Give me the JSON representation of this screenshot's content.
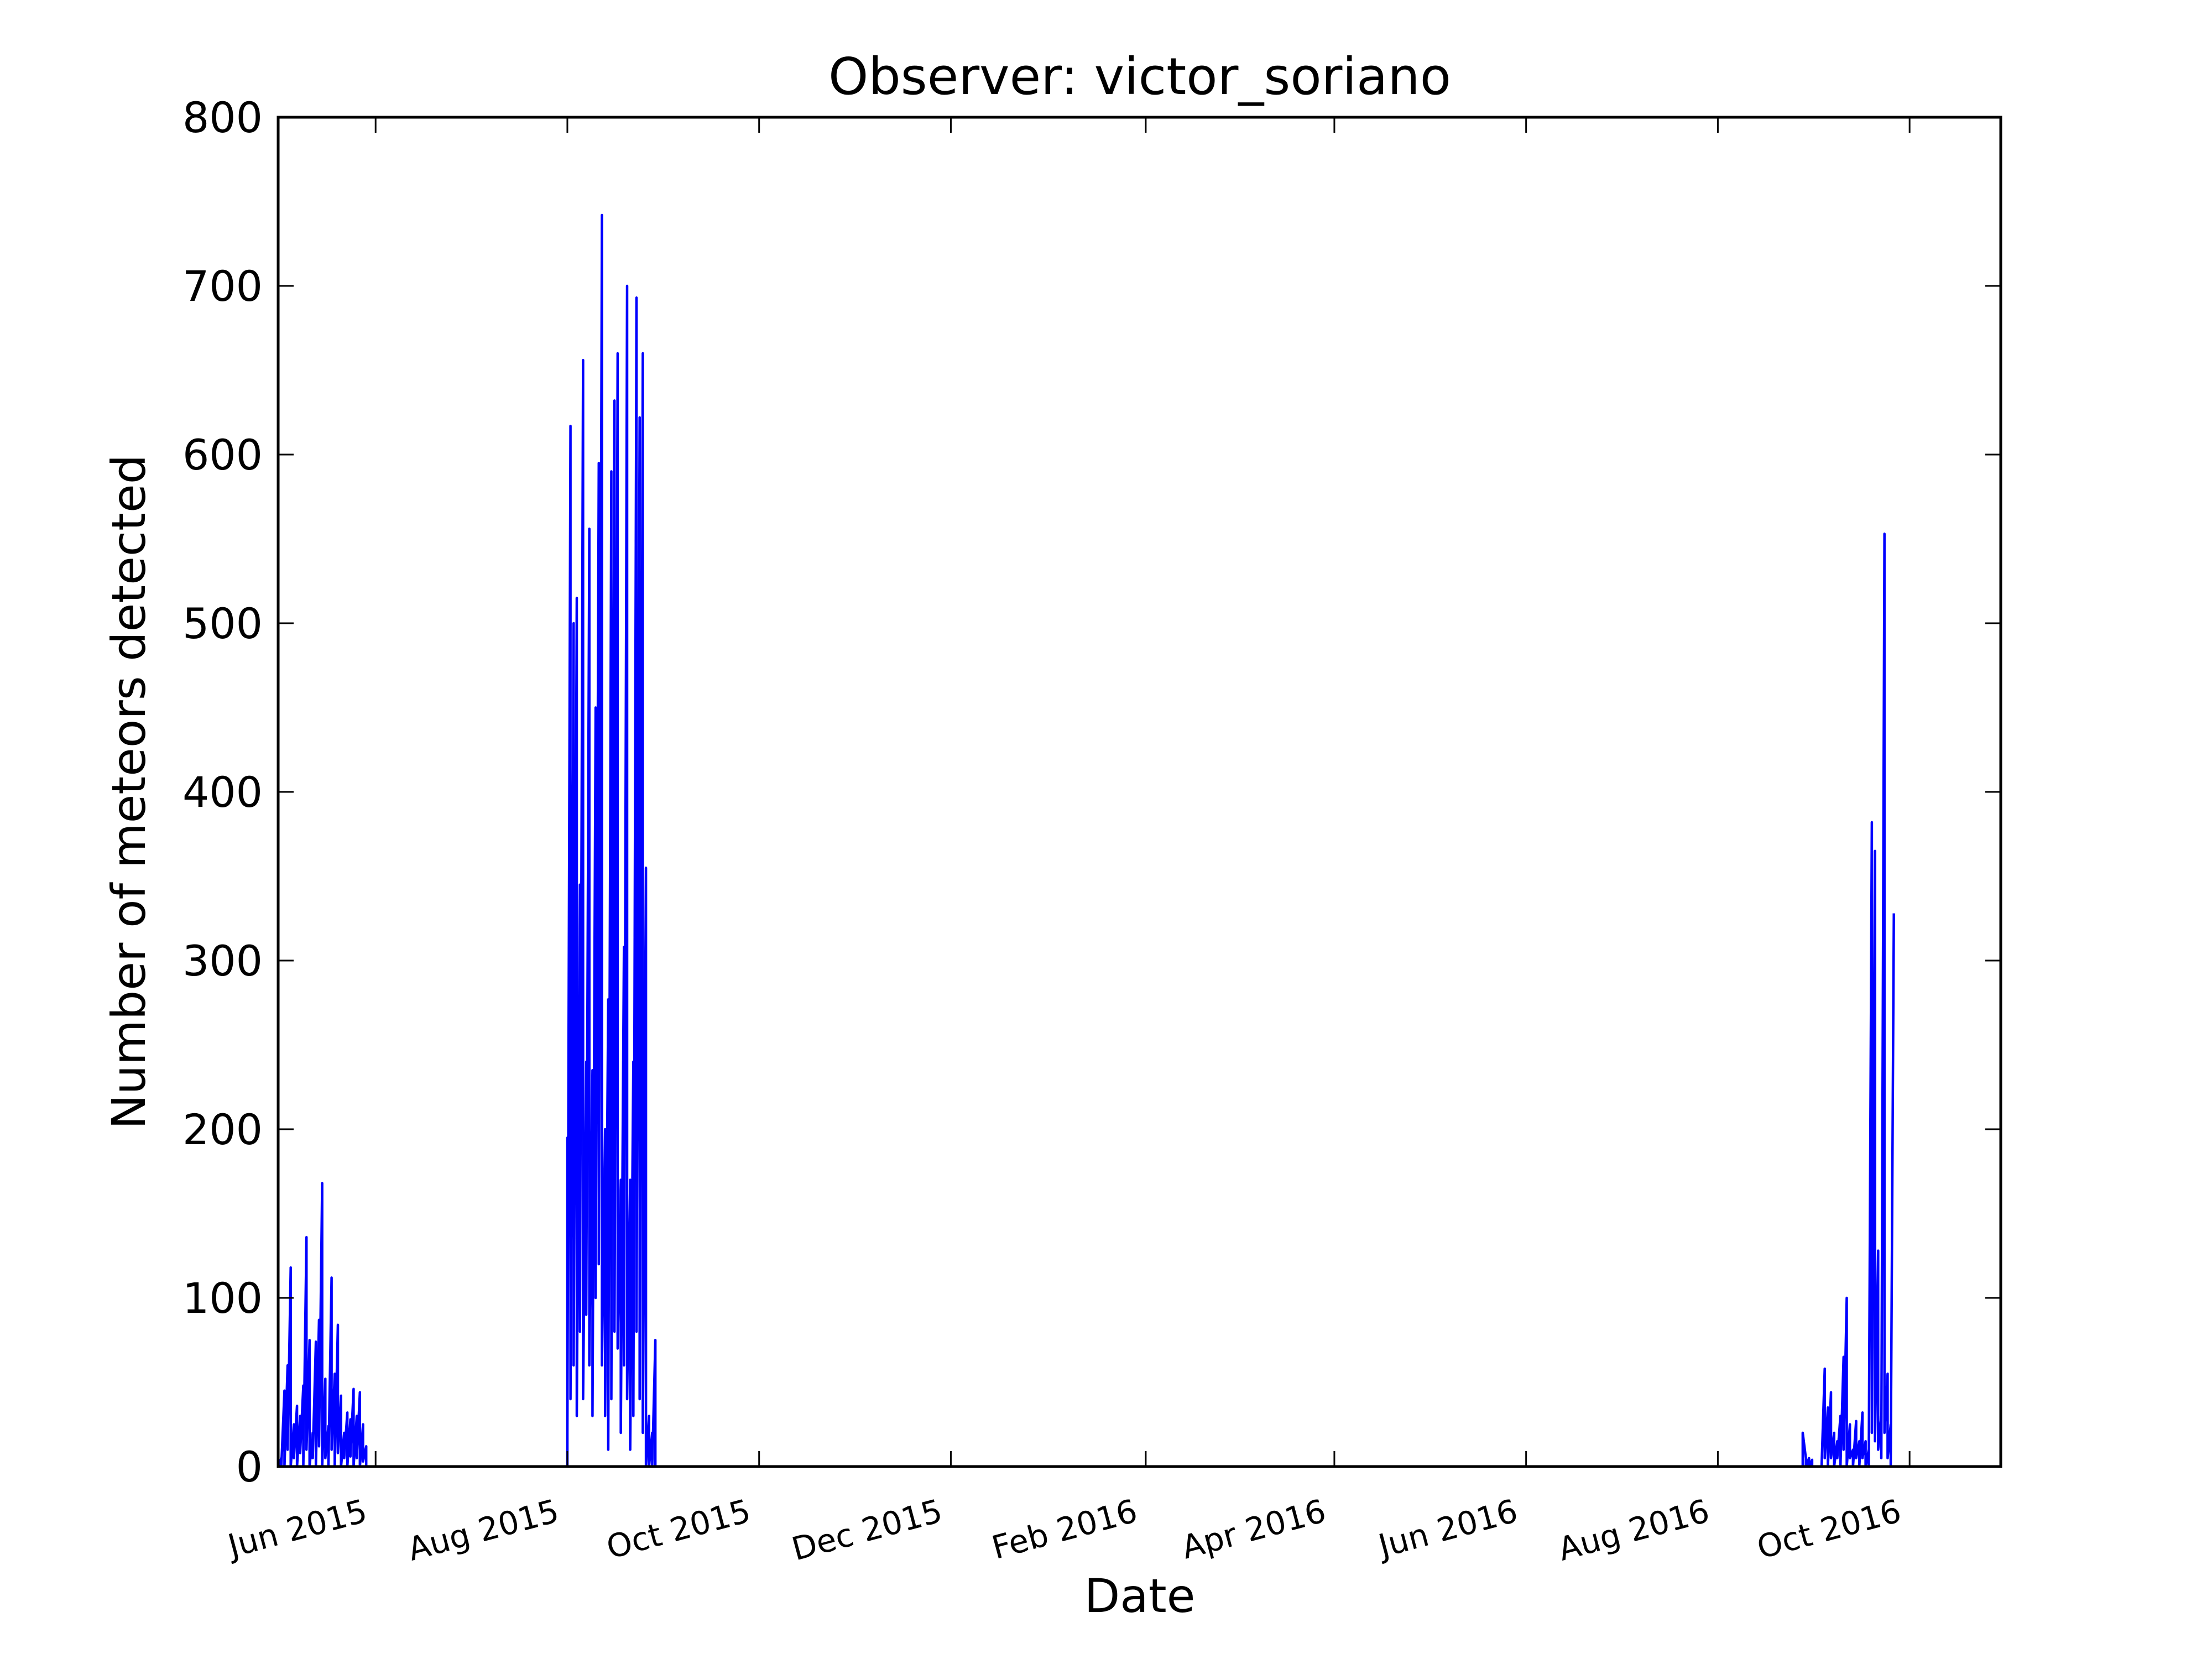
{
  "chart_data": {
    "type": "line",
    "title": "Observer: victor_soriano",
    "xlabel": "Date",
    "ylabel": "Number of meteors detected",
    "ylim": [
      0,
      800
    ],
    "xlim": [
      "2015-05-01",
      "2016-10-30"
    ],
    "yticks": [
      0,
      100,
      200,
      300,
      400,
      500,
      600,
      700,
      800
    ],
    "xticks": [
      {
        "date": "2015-06-01",
        "label": "Jun 2015"
      },
      {
        "date": "2015-08-01",
        "label": "Aug 2015"
      },
      {
        "date": "2015-10-01",
        "label": "Oct 2015"
      },
      {
        "date": "2015-12-01",
        "label": "Dec 2015"
      },
      {
        "date": "2016-02-01",
        "label": "Feb 2016"
      },
      {
        "date": "2016-04-01",
        "label": "Apr 2016"
      },
      {
        "date": "2016-06-01",
        "label": "Jun 2016"
      },
      {
        "date": "2016-08-01",
        "label": "Aug 2016"
      },
      {
        "date": "2016-10-01",
        "label": "Oct 2016"
      }
    ],
    "grid": false,
    "legend": "none",
    "series": [
      {
        "color": "#0000ff",
        "points": [
          [
            "2015-05-01",
            8
          ],
          [
            "2015-05-01",
            0
          ],
          [
            "2015-05-02",
            5
          ],
          [
            "2015-05-02",
            0
          ],
          [
            "2015-05-03",
            45
          ],
          [
            "2015-05-03",
            0
          ],
          [
            "2015-05-04",
            60
          ],
          [
            "2015-05-04",
            10
          ],
          [
            "2015-05-05",
            118
          ],
          [
            "2015-05-05",
            0
          ],
          [
            "2015-05-06",
            25
          ],
          [
            "2015-05-06",
            5
          ],
          [
            "2015-05-07",
            36
          ],
          [
            "2015-05-07",
            0
          ],
          [
            "2015-05-08",
            30
          ],
          [
            "2015-05-08",
            8
          ],
          [
            "2015-05-09",
            48
          ],
          [
            "2015-05-09",
            0
          ],
          [
            "2015-05-10",
            136
          ],
          [
            "2015-05-10",
            10
          ],
          [
            "2015-05-11",
            75
          ],
          [
            "2015-05-11",
            0
          ],
          [
            "2015-05-12",
            20
          ],
          [
            "2015-05-12",
            5
          ],
          [
            "2015-05-13",
            74
          ],
          [
            "2015-05-13",
            0
          ],
          [
            "2015-05-14",
            87
          ],
          [
            "2015-05-14",
            12
          ],
          [
            "2015-05-15",
            168
          ],
          [
            "2015-05-15",
            0
          ],
          [
            "2015-05-16",
            52
          ],
          [
            "2015-05-16",
            5
          ],
          [
            "2015-05-17",
            24
          ],
          [
            "2015-05-17",
            0
          ],
          [
            "2015-05-18",
            112
          ],
          [
            "2015-05-18",
            10
          ],
          [
            "2015-05-19",
            55
          ],
          [
            "2015-05-19",
            0
          ],
          [
            "2015-05-20",
            84
          ],
          [
            "2015-05-20",
            8
          ],
          [
            "2015-05-21",
            42
          ],
          [
            "2015-05-21",
            0
          ],
          [
            "2015-05-22",
            20
          ],
          [
            "2015-05-22",
            5
          ],
          [
            "2015-05-23",
            32
          ],
          [
            "2015-05-23",
            0
          ],
          [
            "2015-05-24",
            28
          ],
          [
            "2015-05-24",
            6
          ],
          [
            "2015-05-25",
            46
          ],
          [
            "2015-05-25",
            0
          ],
          [
            "2015-05-26",
            30
          ],
          [
            "2015-05-26",
            5
          ],
          [
            "2015-05-27",
            44
          ],
          [
            "2015-05-27",
            0
          ],
          [
            "2015-05-28",
            25
          ],
          [
            "2015-05-28",
            3
          ],
          [
            "2015-05-29",
            12
          ],
          [
            "2015-05-29",
            0
          ],
          [
            "2015-05-30",
            0
          ],
          [
            "2015-08-01",
            0
          ],
          [
            "2015-08-01",
            195
          ],
          [
            "2015-08-01",
            20
          ],
          [
            "2015-08-02",
            617
          ],
          [
            "2015-08-02",
            40
          ],
          [
            "2015-08-03",
            500
          ],
          [
            "2015-08-03",
            60
          ],
          [
            "2015-08-04",
            515
          ],
          [
            "2015-08-04",
            30
          ],
          [
            "2015-08-05",
            345
          ],
          [
            "2015-08-05",
            80
          ],
          [
            "2015-08-06",
            656
          ],
          [
            "2015-08-06",
            40
          ],
          [
            "2015-08-07",
            240
          ],
          [
            "2015-08-07",
            90
          ],
          [
            "2015-08-08",
            556
          ],
          [
            "2015-08-08",
            60
          ],
          [
            "2015-08-09",
            235
          ],
          [
            "2015-08-09",
            30
          ],
          [
            "2015-08-10",
            450
          ],
          [
            "2015-08-10",
            100
          ],
          [
            "2015-08-11",
            595
          ],
          [
            "2015-08-11",
            120
          ],
          [
            "2015-08-12",
            742
          ],
          [
            "2015-08-12",
            60
          ],
          [
            "2015-08-13",
            200
          ],
          [
            "2015-08-13",
            30
          ],
          [
            "2015-08-14",
            277
          ],
          [
            "2015-08-14",
            10
          ],
          [
            "2015-08-15",
            590
          ],
          [
            "2015-08-15",
            40
          ],
          [
            "2015-08-16",
            632
          ],
          [
            "2015-08-16",
            80
          ],
          [
            "2015-08-17",
            660
          ],
          [
            "2015-08-17",
            70
          ],
          [
            "2015-08-18",
            170
          ],
          [
            "2015-08-18",
            20
          ],
          [
            "2015-08-19",
            308
          ],
          [
            "2015-08-19",
            60
          ],
          [
            "2015-08-20",
            700
          ],
          [
            "2015-08-20",
            40
          ],
          [
            "2015-08-21",
            170
          ],
          [
            "2015-08-21",
            10
          ],
          [
            "2015-08-22",
            240
          ],
          [
            "2015-08-22",
            30
          ],
          [
            "2015-08-23",
            693
          ],
          [
            "2015-08-23",
            80
          ],
          [
            "2015-08-24",
            622
          ],
          [
            "2015-08-24",
            40
          ],
          [
            "2015-08-25",
            660
          ],
          [
            "2015-08-25",
            20
          ],
          [
            "2015-08-26",
            355
          ],
          [
            "2015-08-26",
            0
          ],
          [
            "2015-08-27",
            30
          ],
          [
            "2015-08-27",
            0
          ],
          [
            "2015-08-28",
            20
          ],
          [
            "2015-08-28",
            0
          ],
          [
            "2015-08-29",
            75
          ],
          [
            "2015-08-29",
            0
          ],
          [
            "2016-08-28",
            0
          ],
          [
            "2016-08-28",
            20
          ],
          [
            "2016-08-29",
            5
          ],
          [
            "2016-08-29",
            0
          ],
          [
            "2016-08-30",
            5
          ],
          [
            "2016-08-30",
            0
          ],
          [
            "2016-08-31",
            4
          ],
          [
            "2016-08-31",
            0
          ],
          [
            "2016-09-03",
            0
          ],
          [
            "2016-09-04",
            58
          ],
          [
            "2016-09-04",
            5
          ],
          [
            "2016-09-05",
            35
          ],
          [
            "2016-09-05",
            0
          ],
          [
            "2016-09-06",
            44
          ],
          [
            "2016-09-06",
            5
          ],
          [
            "2016-09-07",
            20
          ],
          [
            "2016-09-07",
            0
          ],
          [
            "2016-09-08",
            15
          ],
          [
            "2016-09-08",
            5
          ],
          [
            "2016-09-09",
            30
          ],
          [
            "2016-09-09",
            0
          ],
          [
            "2016-09-10",
            65
          ],
          [
            "2016-09-10",
            10
          ],
          [
            "2016-09-11",
            100
          ],
          [
            "2016-09-11",
            0
          ],
          [
            "2016-09-12",
            25
          ],
          [
            "2016-09-12",
            5
          ],
          [
            "2016-09-13",
            10
          ],
          [
            "2016-09-13",
            0
          ],
          [
            "2016-09-14",
            27
          ],
          [
            "2016-09-14",
            5
          ],
          [
            "2016-09-15",
            15
          ],
          [
            "2016-09-15",
            0
          ],
          [
            "2016-09-16",
            32
          ],
          [
            "2016-09-16",
            5
          ],
          [
            "2016-09-17",
            15
          ],
          [
            "2016-09-17",
            0
          ],
          [
            "2016-09-18",
            10
          ],
          [
            "2016-09-18",
            0
          ],
          [
            "2016-09-19",
            382
          ],
          [
            "2016-09-19",
            20
          ],
          [
            "2016-09-20",
            365
          ],
          [
            "2016-09-20",
            15
          ],
          [
            "2016-09-21",
            128
          ],
          [
            "2016-09-21",
            10
          ],
          [
            "2016-09-22",
            30
          ],
          [
            "2016-09-22",
            5
          ],
          [
            "2016-09-23",
            553
          ],
          [
            "2016-09-23",
            20
          ],
          [
            "2016-09-24",
            55
          ],
          [
            "2016-09-24",
            5
          ],
          [
            "2016-09-25",
            25
          ],
          [
            "2016-09-25",
            0
          ],
          [
            "2016-09-26",
            328
          ]
        ]
      }
    ]
  }
}
